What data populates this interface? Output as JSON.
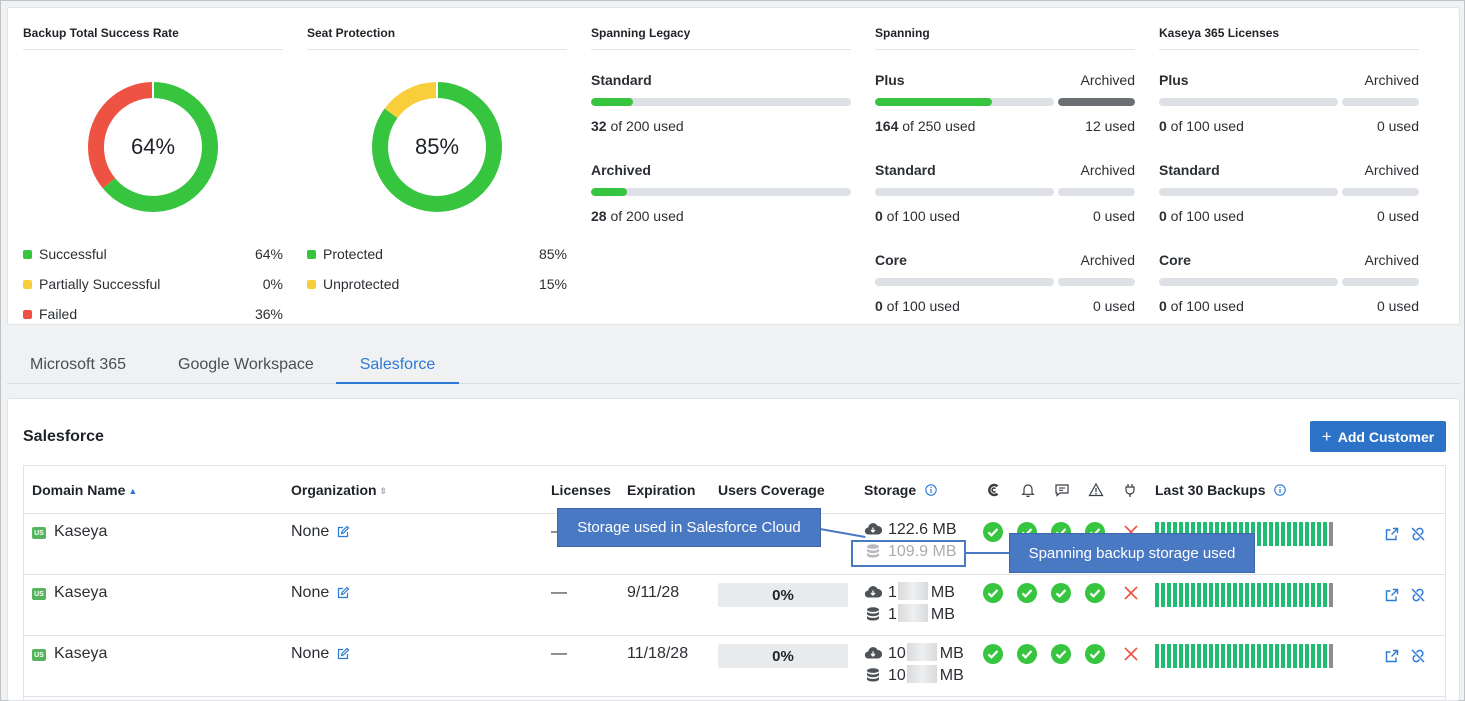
{
  "backup_rate": {
    "title": "Backup Total Success Rate",
    "percent_label": "64%",
    "segments": [
      {
        "label": "Successful",
        "pct": "64%",
        "value": 64,
        "color": "#37c43f"
      },
      {
        "label": "Partially Successful",
        "pct": "0%",
        "value": 0,
        "color": "#f8cf3a"
      },
      {
        "label": "Failed",
        "pct": "36%",
        "value": 36,
        "color": "#ee5242"
      }
    ]
  },
  "seat_protection": {
    "title": "Seat Protection",
    "percent_label": "85%",
    "segments": [
      {
        "label": "Protected",
        "pct": "85%",
        "value": 85,
        "color": "#37c43f"
      },
      {
        "label": "Unprotected",
        "pct": "15%",
        "value": 15,
        "color": "#f8cf3a"
      }
    ]
  },
  "spanning_legacy": {
    "title": "Spanning Legacy",
    "items": [
      {
        "name": "Standard",
        "used": "32",
        "of_text": " of 200 used",
        "fraction": 0.16
      },
      {
        "name": "Archived",
        "used": "28",
        "of_text": " of 200 used",
        "fraction": 0.14
      }
    ]
  },
  "spanning": {
    "title": "Spanning",
    "items": [
      {
        "name": "Plus",
        "archived_label": "Archived",
        "used": "164",
        "of_text": " of 250 used",
        "fraction": 0.656,
        "archived_used": "12 used",
        "archived_fraction": 1.0
      },
      {
        "name": "Standard",
        "archived_label": "Archived",
        "used": "0",
        "of_text": " of 100 used",
        "fraction": 0,
        "archived_used": "0 used",
        "archived_fraction": 0
      },
      {
        "name": "Core",
        "archived_label": "Archived",
        "used": "0",
        "of_text": " of 100 used",
        "fraction": 0,
        "archived_used": "0 used",
        "archived_fraction": 0
      }
    ]
  },
  "kaseya365": {
    "title": "Kaseya 365 Licenses",
    "items": [
      {
        "name": "Plus",
        "archived_label": "Archived",
        "used": "0",
        "of_text": " of 100 used",
        "fraction": 0,
        "archived_used": "0 used",
        "archived_fraction": 0
      },
      {
        "name": "Standard",
        "archived_label": "Archived",
        "used": "0",
        "of_text": " of 100 used",
        "fraction": 0,
        "archived_used": "0 used",
        "archived_fraction": 0
      },
      {
        "name": "Core",
        "archived_label": "Archived",
        "used": "0",
        "of_text": " of 100 used",
        "fraction": 0,
        "archived_used": "0 used",
        "archived_fraction": 0
      }
    ]
  },
  "tabs": [
    {
      "label": "Microsoft 365",
      "active": false
    },
    {
      "label": "Google Workspace",
      "active": false
    },
    {
      "label": "Salesforce",
      "active": true
    }
  ],
  "section": {
    "title": "Salesforce",
    "add_button": "Add Customer"
  },
  "table": {
    "headers": {
      "domain": "Domain Name",
      "organization": "Organization",
      "licenses": "Licenses",
      "expiration": "Expiration",
      "coverage": "Users Coverage",
      "storage": "Storage",
      "last30": "Last 30 Backups"
    },
    "status_icons": [
      "cloud-c-icon",
      "bell-icon",
      "comment-icon",
      "warning-icon",
      "plug-icon"
    ],
    "rows": [
      {
        "flag": "US",
        "domain": "Kaseya",
        "organization": "None",
        "licenses": "—",
        "expiration": "",
        "coverage": "",
        "cloud": "122.6 MB",
        "cloud_blur": false,
        "backup": "109.9 MB",
        "backup_blur": false,
        "cloud_a": "",
        "cloud_b": "",
        "backup_a": "",
        "backup_b": ""
      },
      {
        "flag": "US",
        "domain": "Kaseya",
        "organization": "None",
        "licenses": "—",
        "expiration": "9/11/28",
        "coverage": "0%",
        "cloud_a": "1",
        "cloud_b": "MB",
        "backup_a": "1",
        "backup_b": "MB"
      },
      {
        "flag": "US",
        "domain": "Kaseya",
        "organization": "None",
        "licenses": "—",
        "expiration": "11/18/28",
        "coverage": "0%",
        "cloud_a": "10",
        "cloud_b": "MB",
        "backup_a": "10",
        "backup_b": "MB"
      }
    ]
  },
  "callouts": {
    "cloud": "Storage used in Salesforce Cloud",
    "backup": "Spanning backup storage used"
  },
  "colors": {
    "accent": "#2c72c7",
    "success": "#37c43f",
    "spark": "#1fbd72",
    "callout": "#4a79c4"
  }
}
